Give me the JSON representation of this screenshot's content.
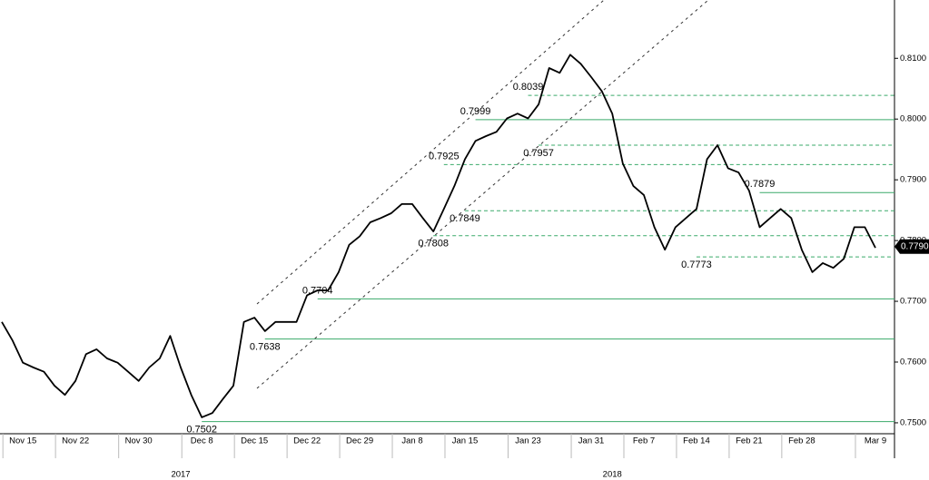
{
  "chart_data": {
    "type": "line",
    "color": "#000000",
    "level_color": "#3aaa6a",
    "categories": [
      null,
      null,
      "Nov 15",
      null,
      null,
      null,
      null,
      "Nov 22",
      null,
      null,
      null,
      null,
      null,
      "Nov 30",
      null,
      null,
      null,
      null,
      null,
      "Dec 8",
      null,
      null,
      null,
      null,
      "Dec 15",
      null,
      null,
      null,
      null,
      "Dec 22",
      null,
      null,
      null,
      null,
      "Dec 29",
      null,
      null,
      null,
      null,
      "Jan 8",
      null,
      null,
      null,
      null,
      "Jan 15",
      null,
      null,
      null,
      null,
      null,
      "Jan 23",
      null,
      null,
      null,
      null,
      null,
      "Jan 31",
      null,
      null,
      null,
      null,
      "Feb 7",
      null,
      null,
      null,
      null,
      "Feb 14",
      null,
      null,
      null,
      null,
      "Feb 21",
      null,
      null,
      null,
      null,
      "Feb 28",
      null,
      null,
      null,
      null,
      null,
      null,
      "Mar 9"
    ],
    "values": [
      0.7666,
      0.7636,
      0.7599,
      0.7591,
      0.7584,
      0.7561,
      0.7546,
      0.7569,
      0.7613,
      0.7621,
      0.7606,
      0.7599,
      0.7584,
      0.7569,
      0.7591,
      0.7606,
      0.7643,
      0.7591,
      0.7546,
      0.7509,
      0.7516,
      0.7539,
      0.7561,
      0.7666,
      0.7673,
      0.7651,
      0.7666,
      0.7666,
      0.7666,
      0.771,
      0.7718,
      0.7718,
      0.7748,
      0.7793,
      0.7807,
      0.783,
      0.7837,
      0.7845,
      0.786,
      0.786,
      0.7837,
      0.7815,
      0.7852,
      0.789,
      0.7934,
      0.7964,
      0.7972,
      0.7979,
      0.8001,
      0.8009,
      0.8001,
      0.8024,
      0.8084,
      0.8076,
      0.8106,
      0.8091,
      0.8069,
      0.8046,
      0.8009,
      0.7927,
      0.789,
      0.7875,
      0.7822,
      0.7785,
      0.7822,
      0.7837,
      0.7852,
      0.7934,
      0.7957,
      0.7919,
      0.7912,
      0.7882,
      0.7822,
      0.7837,
      0.7852,
      0.7837,
      0.7785,
      0.7748,
      0.7763,
      0.7755,
      0.777,
      0.7822,
      0.7822,
      0.7788
    ],
    "year_labels": [
      {
        "label": "2017",
        "at": 17
      },
      {
        "label": "2018",
        "at": 58
      }
    ],
    "levels": [
      {
        "value": 0.8039,
        "label": "0.8039",
        "at": 50,
        "style": "dashed",
        "label_position": "above"
      },
      {
        "value": 0.7999,
        "label": "0.7999",
        "at": 45,
        "style": "solid",
        "label_position": "above"
      },
      {
        "value": 0.7957,
        "label": "0.7957",
        "at": 51,
        "style": "dashed",
        "label_position": "below"
      },
      {
        "value": 0.7925,
        "label": "0.7925",
        "at": 42,
        "style": "dashed",
        "label_position": "above"
      },
      {
        "value": 0.7879,
        "label": "0.7879",
        "at": 72,
        "style": "solid",
        "label_position": "above"
      },
      {
        "value": 0.7849,
        "label": "0.7849",
        "at": 44,
        "style": "dashed",
        "label_position": "below"
      },
      {
        "value": 0.7808,
        "label": "0.7808",
        "at": 41,
        "style": "dashed",
        "label_position": "below"
      },
      {
        "value": 0.7773,
        "label": "0.7773",
        "at": 66,
        "style": "dashed",
        "label_position": "below"
      },
      {
        "value": 0.7704,
        "label": "0.7704",
        "at": 30,
        "style": "solid",
        "label_position": "above"
      },
      {
        "value": 0.7638,
        "label": "0.7638",
        "at": 25,
        "style": "solid",
        "label_position": "below"
      },
      {
        "value": 0.7502,
        "label": "0.7502",
        "at": 19,
        "style": "solid",
        "label_position": "below"
      }
    ],
    "last_price": {
      "value": 0.779,
      "label": "0.7790"
    },
    "ylim": [
      0.7482,
      0.8196
    ],
    "yticks": [
      {
        "value": 0.75,
        "label": "0.7500"
      },
      {
        "value": 0.76,
        "label": "0.7600"
      },
      {
        "value": 0.77,
        "label": "0.7700"
      },
      {
        "value": 0.78,
        "label": "0.7800"
      },
      {
        "value": 0.79,
        "label": "0.7900"
      },
      {
        "value": 0.8,
        "label": "0.8000"
      },
      {
        "value": 0.81,
        "label": "0.8100"
      }
    ]
  }
}
